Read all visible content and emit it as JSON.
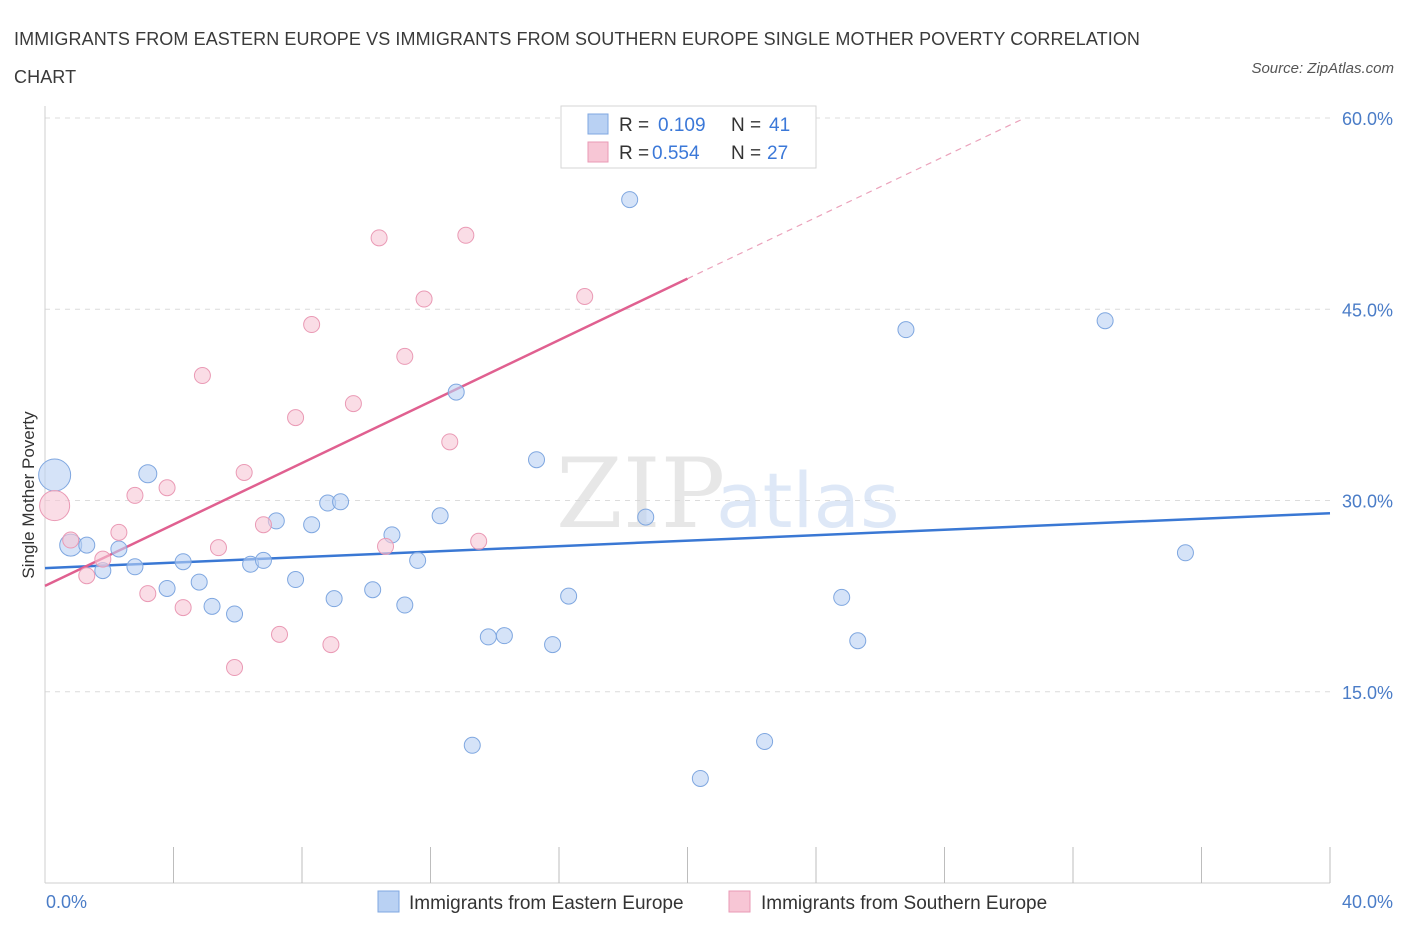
{
  "title": "IMMIGRANTS FROM EASTERN EUROPE VS IMMIGRANTS FROM SOUTHERN EUROPE SINGLE MOTHER POVERTY CORRELATION CHART",
  "source": "Source: ZipAtlas.com",
  "watermark": {
    "zip": "ZIP",
    "atlas": "atlas"
  },
  "colors": {
    "blue": "#3a78d4",
    "blue_fill": "#b9d1f3",
    "pink": "#e06090",
    "pink_fill": "#f7c6d5",
    "grid": "#dcdcdc"
  },
  "legend": {
    "r_label": "R =",
    "n_label": "N =",
    "blue_r": "0.109",
    "blue_n": "41",
    "pink_r": "0.554",
    "pink_n": "27"
  },
  "chart_data": {
    "type": "scatter",
    "xlabel": "",
    "ylabel": "Single Mother Poverty",
    "xlim": [
      0,
      40
    ],
    "ylim": [
      0,
      60
    ],
    "x_tick_labels": [
      "0.0%",
      "40.0%"
    ],
    "y_ticks": [
      15,
      30,
      45,
      60
    ],
    "y_tick_labels": [
      "15.0%",
      "30.0%",
      "45.0%",
      "60.0%"
    ],
    "series": [
      {
        "name": "Immigrants from Eastern Europe",
        "color": "#3a78d4",
        "trend": {
          "x0": 0,
          "y0": 24.7,
          "x1": 40,
          "y1": 29.0
        },
        "points": [
          [
            0.3,
            32.0,
            16
          ],
          [
            0.8,
            26.5,
            11
          ],
          [
            1.3,
            26.5,
            8
          ],
          [
            1.8,
            24.5,
            8
          ],
          [
            2.3,
            26.2,
            8
          ],
          [
            2.8,
            24.8,
            8
          ],
          [
            3.2,
            32.1,
            9
          ],
          [
            3.8,
            23.1,
            8
          ],
          [
            4.3,
            25.2,
            8
          ],
          [
            4.8,
            23.6,
            8
          ],
          [
            5.2,
            21.7,
            8
          ],
          [
            5.9,
            21.1,
            8
          ],
          [
            6.4,
            25.0,
            8
          ],
          [
            6.8,
            25.3,
            8
          ],
          [
            7.2,
            28.4,
            8
          ],
          [
            7.8,
            23.8,
            8
          ],
          [
            8.3,
            28.1,
            8
          ],
          [
            8.8,
            29.8,
            8
          ],
          [
            9.2,
            29.9,
            8
          ],
          [
            9.0,
            22.3,
            8
          ],
          [
            10.2,
            23.0,
            8
          ],
          [
            10.8,
            27.3,
            8
          ],
          [
            11.2,
            21.8,
            8
          ],
          [
            11.6,
            25.3,
            8
          ],
          [
            12.3,
            28.8,
            8
          ],
          [
            12.8,
            38.5,
            8
          ],
          [
            13.3,
            10.8,
            8
          ],
          [
            13.8,
            19.3,
            8
          ],
          [
            14.3,
            19.4,
            8
          ],
          [
            15.3,
            33.2,
            8
          ],
          [
            15.8,
            18.7,
            8
          ],
          [
            16.3,
            22.5,
            8
          ],
          [
            18.2,
            53.6,
            8
          ],
          [
            18.7,
            28.7,
            8
          ],
          [
            20.4,
            8.2,
            8
          ],
          [
            22.4,
            11.1,
            8
          ],
          [
            24.8,
            22.4,
            8
          ],
          [
            25.3,
            19.0,
            8
          ],
          [
            26.8,
            43.4,
            8
          ],
          [
            33.0,
            44.1,
            8
          ],
          [
            35.5,
            25.9,
            8
          ]
        ]
      },
      {
        "name": "Immigrants from Southern Europe",
        "color": "#e06090",
        "trend": {
          "x0": 0,
          "y0": 23.3,
          "x1": 20.0,
          "y1": 47.4
        },
        "trend_dashed": {
          "x0": 20.0,
          "y0": 47.4,
          "x1": 30.5,
          "y1": 60.0
        },
        "points": [
          [
            0.3,
            29.6,
            15
          ],
          [
            0.8,
            26.9,
            8
          ],
          [
            1.3,
            24.1,
            8
          ],
          [
            1.8,
            25.4,
            8
          ],
          [
            2.3,
            27.5,
            8
          ],
          [
            2.8,
            30.4,
            8
          ],
          [
            3.2,
            22.7,
            8
          ],
          [
            3.8,
            31.0,
            8
          ],
          [
            4.3,
            21.6,
            8
          ],
          [
            4.9,
            39.8,
            8
          ],
          [
            5.4,
            26.3,
            8
          ],
          [
            5.9,
            16.9,
            8
          ],
          [
            6.2,
            32.2,
            8
          ],
          [
            6.8,
            28.1,
            8
          ],
          [
            7.3,
            19.5,
            8
          ],
          [
            7.8,
            36.5,
            8
          ],
          [
            8.3,
            43.8,
            8
          ],
          [
            8.9,
            18.7,
            8
          ],
          [
            9.6,
            37.6,
            8
          ],
          [
            10.4,
            50.6,
            8
          ],
          [
            10.6,
            26.4,
            8
          ],
          [
            11.2,
            41.3,
            8
          ],
          [
            11.8,
            45.8,
            8
          ],
          [
            12.6,
            34.6,
            8
          ],
          [
            13.1,
            50.8,
            8
          ],
          [
            13.5,
            26.8,
            8
          ],
          [
            16.8,
            46.0,
            8
          ]
        ]
      }
    ]
  }
}
